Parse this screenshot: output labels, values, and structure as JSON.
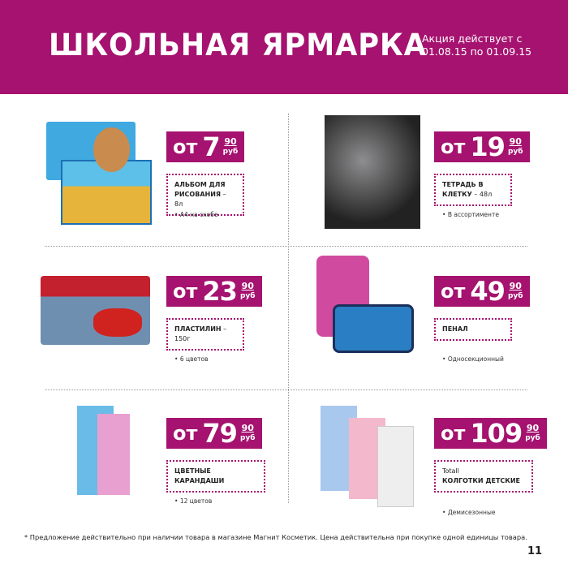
{
  "header": {
    "title": "ШКОЛЬНАЯ ЯРМАРКА",
    "promo_line1": "Акция действует с",
    "promo_line2": "01.08.15 по 01.09.15"
  },
  "colors": {
    "brand": "#a5126f"
  },
  "products": [
    {
      "prefix": "от",
      "price": "7",
      "kop": "90",
      "currency": "руб",
      "brand": "",
      "name": "АЛЬБОМ ДЛЯ РИСОВАНИЯ",
      "suffix": " – 8л",
      "note": "А4 на скобе",
      "image": "drawing-album"
    },
    {
      "prefix": "от",
      "price": "19",
      "kop": "90",
      "currency": "руб",
      "brand": "",
      "name": "ТЕТРАДЬ В КЛЕТКУ",
      "suffix": " – 48л",
      "note": "В ассортименте",
      "image": "notebook"
    },
    {
      "prefix": "от",
      "price": "23",
      "kop": "90",
      "currency": "руб",
      "brand": "",
      "name": "ПЛАСТИЛИН",
      "suffix": " – 150г",
      "note": "6 цветов",
      "image": "plasticine"
    },
    {
      "prefix": "от",
      "price": "49",
      "kop": "90",
      "currency": "руб",
      "brand": "",
      "name": "ПЕНАЛ",
      "suffix": "",
      "note": "Односекционный",
      "image": "pencil-case"
    },
    {
      "prefix": "от",
      "price": "79",
      "kop": "90",
      "currency": "руб",
      "brand": "",
      "name": "ЦВЕТНЫЕ КАРАНДАШИ",
      "suffix": "",
      "note": "12 цветов",
      "image": "colored-pencils"
    },
    {
      "prefix": "от",
      "price": "109",
      "kop": "90",
      "currency": "руб",
      "brand": "Totall",
      "name": "КОЛГОТКИ ДЕТСКИЕ",
      "suffix": "",
      "note": "Демисезонные",
      "image": "tights"
    }
  ],
  "footer": {
    "disclaimer": "* Предложение действительно при наличии товара в магазине Магнит Косметик. Цена действительна при покупке одной единицы товара.",
    "page_number": "11"
  }
}
